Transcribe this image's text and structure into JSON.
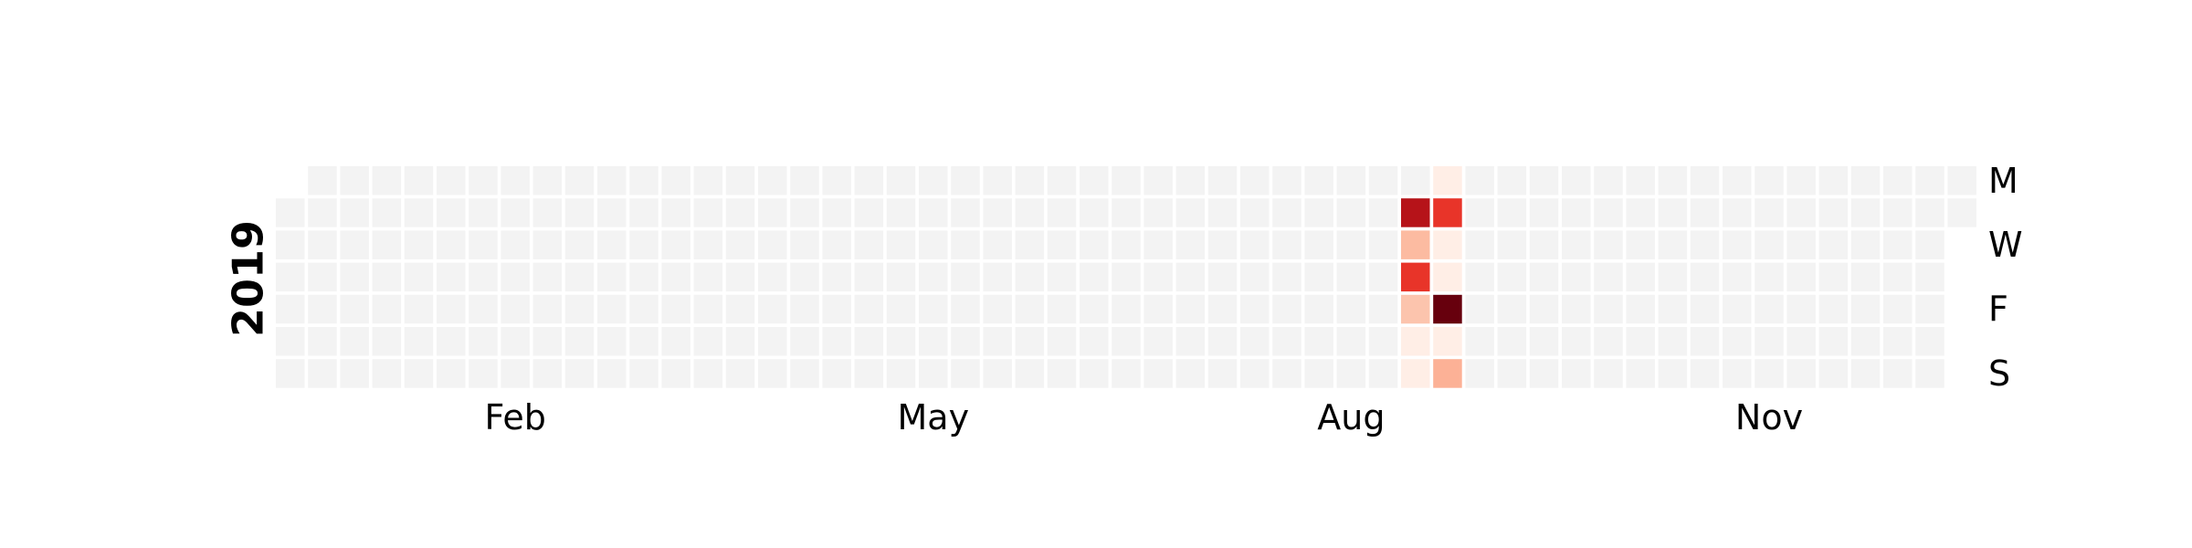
{
  "chart_data": {
    "type": "heatmap",
    "title": "",
    "year_label": "2019",
    "colormap": "Reds",
    "empty_color": "#f3f3f3",
    "x_tick_labels": [
      {
        "label": "Feb",
        "week": 7
      },
      {
        "label": "May",
        "week": 20
      },
      {
        "label": "Aug",
        "week": 33
      },
      {
        "label": "Nov",
        "week": 46
      }
    ],
    "y_tick_labels": [
      {
        "label": "M",
        "day": 0
      },
      {
        "label": "W",
        "day": 2
      },
      {
        "label": "F",
        "day": 4
      },
      {
        "label": "S",
        "day": 6
      }
    ],
    "grid": {
      "weeks": 53,
      "days": 7,
      "first_week_start_day": 1,
      "last_week_end_day": 1
    },
    "value_range": [
      0,
      1
    ],
    "values": [
      {
        "week": 35,
        "day": 1,
        "value": 0.82
      },
      {
        "week": 35,
        "day": 2,
        "value": 0.25
      },
      {
        "week": 35,
        "day": 3,
        "value": 0.65
      },
      {
        "week": 35,
        "day": 4,
        "value": 0.22
      },
      {
        "week": 35,
        "day": 5,
        "value": 0.04
      },
      {
        "week": 35,
        "day": 6,
        "value": 0.04
      },
      {
        "week": 36,
        "day": 0,
        "value": 0.04
      },
      {
        "week": 36,
        "day": 1,
        "value": 0.65
      },
      {
        "week": 36,
        "day": 2,
        "value": 0.04
      },
      {
        "week": 36,
        "day": 3,
        "value": 0.04
      },
      {
        "week": 36,
        "day": 4,
        "value": 1.0
      },
      {
        "week": 36,
        "day": 5,
        "value": 0.04
      },
      {
        "week": 36,
        "day": 6,
        "value": 0.28
      }
    ]
  }
}
